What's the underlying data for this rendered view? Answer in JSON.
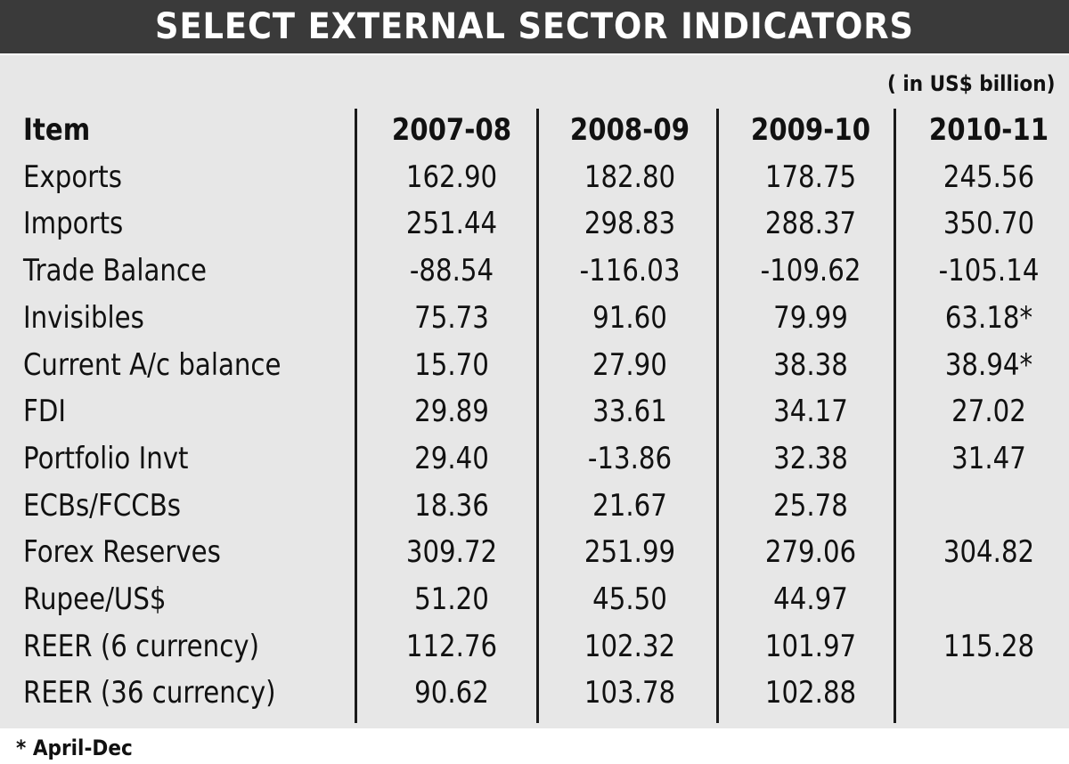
{
  "title": "SELECT EXTERNAL SECTOR INDICATORS",
  "unit_note": "( in US$ billion)",
  "footnote": "* April-Dec",
  "chart_data": {
    "type": "table",
    "title": "SELECT EXTERNAL SECTOR INDICATORS",
    "unit": "( in US$ billion)",
    "columns": [
      "Item",
      "2007-08",
      "2008-09",
      "2009-10",
      "2010-11"
    ],
    "rows": [
      {
        "item": "Exports",
        "values": [
          "162.90",
          "182.80",
          "178.75",
          "245.56"
        ]
      },
      {
        "item": "Imports",
        "values": [
          "251.44",
          "298.83",
          "288.37",
          "350.70"
        ]
      },
      {
        "item": "Trade Balance",
        "values": [
          "-88.54",
          "-116.03",
          "-109.62",
          "-105.14"
        ]
      },
      {
        "item": "Invisibles",
        "values": [
          "75.73",
          "91.60",
          "79.99",
          "63.18*"
        ]
      },
      {
        "item": "Current A/c balance",
        "values": [
          "15.70",
          "27.90",
          "38.38",
          "38.94*"
        ]
      },
      {
        "item": "FDI",
        "values": [
          "29.89",
          "33.61",
          "34.17",
          "27.02"
        ]
      },
      {
        "item": "Portfolio Invt",
        "values": [
          "29.40",
          "-13.86",
          "32.38",
          "31.47"
        ]
      },
      {
        "item": "ECBs/FCCBs",
        "values": [
          "18.36",
          "21.67",
          "25.78",
          ""
        ]
      },
      {
        "item": "Forex Reserves",
        "values": [
          "309.72",
          "251.99",
          "279.06",
          "304.82"
        ]
      },
      {
        "item": "Rupee/US$",
        "values": [
          "51.20",
          "45.50",
          "44.97",
          ""
        ]
      },
      {
        "item": "REER (6 currency)",
        "values": [
          "112.76",
          "102.32",
          "101.97",
          "115.28"
        ]
      },
      {
        "item": "REER (36 currency)",
        "values": [
          "90.62",
          "103.78",
          "102.88",
          ""
        ]
      }
    ],
    "footnote": "* April-Dec"
  }
}
